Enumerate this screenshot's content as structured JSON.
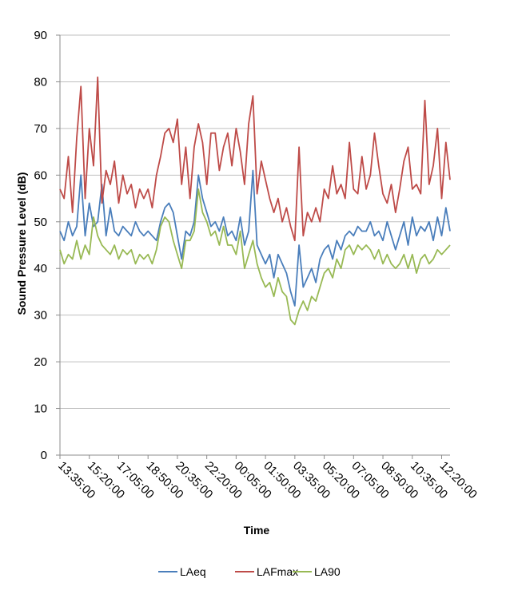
{
  "chart_data": {
    "type": "line",
    "title": "",
    "xlabel": "Time",
    "ylabel": "Sound Pressure Level (dB)",
    "ylim": [
      0,
      90
    ],
    "yticks": [
      0,
      10,
      20,
      30,
      40,
      50,
      60,
      70,
      80,
      90
    ],
    "grid": true,
    "legend": "bottom",
    "x_step_minutes": 15,
    "x_max_minutes": 1395,
    "x_tick_step_minutes": 105,
    "x_tick_labels": [
      "13:35:00",
      "15:20:00",
      "17:05:00",
      "18:50:00",
      "20:35:00",
      "22:20:00",
      "00:05:00",
      "01:50:00",
      "03:35:00",
      "05:20:00",
      "07:05:00",
      "08:50:00",
      "10:35:00",
      "12:20:00"
    ],
    "series": [
      {
        "name": "LAeq",
        "color": "#4a7ebb",
        "values": [
          48,
          46,
          50,
          47,
          49,
          60,
          47,
          54,
          49,
          50,
          58,
          47,
          53,
          48,
          47,
          49,
          48,
          47,
          50,
          48,
          47,
          48,
          47,
          46,
          50,
          53,
          54,
          52,
          47,
          42,
          48,
          47,
          50,
          60,
          55,
          52,
          49,
          50,
          48,
          51,
          47,
          48,
          46,
          51,
          45,
          48,
          61,
          45,
          43,
          41,
          43,
          38,
          43,
          41,
          39,
          35,
          32,
          45,
          36,
          38,
          40,
          37,
          42,
          44,
          45,
          42,
          46,
          44,
          47,
          48,
          47,
          49,
          48,
          48,
          50,
          47,
          48,
          46,
          50,
          47,
          44,
          47,
          50,
          45,
          51,
          47,
          49,
          48,
          50,
          46,
          51,
          47,
          53,
          48
        ]
      },
      {
        "name": "LAFmax",
        "color": "#be4b48",
        "values": [
          57,
          55,
          64,
          52,
          68,
          79,
          55,
          70,
          62,
          81,
          54,
          61,
          58,
          63,
          54,
          60,
          56,
          58,
          53,
          57,
          55,
          57,
          53,
          60,
          64,
          69,
          70,
          67,
          72,
          58,
          66,
          55,
          66,
          71,
          67,
          58,
          69,
          69,
          61,
          66,
          69,
          62,
          70,
          65,
          58,
          71,
          77,
          56,
          63,
          59,
          55,
          52,
          55,
          50,
          53,
          49,
          46,
          66,
          47,
          52,
          50,
          53,
          50,
          57,
          55,
          62,
          56,
          58,
          55,
          67,
          57,
          56,
          64,
          57,
          60,
          69,
          62,
          56,
          54,
          58,
          52,
          57,
          63,
          66,
          57,
          58,
          56,
          76,
          58,
          62,
          70,
          55,
          67,
          59
        ]
      },
      {
        "name": "LA90",
        "color": "#98b954",
        "values": [
          44,
          41,
          43,
          42,
          46,
          42,
          45,
          43,
          51,
          47,
          45,
          44,
          43,
          45,
          42,
          44,
          43,
          44,
          41,
          43,
          42,
          43,
          41,
          44,
          49,
          51,
          50,
          46,
          43,
          40,
          46,
          46,
          48,
          57,
          52,
          50,
          47,
          48,
          45,
          49,
          45,
          45,
          43,
          48,
          40,
          43,
          46,
          41,
          38,
          36,
          37,
          34,
          38,
          35,
          34,
          29,
          28,
          31,
          33,
          31,
          34,
          33,
          36,
          39,
          40,
          38,
          42,
          40,
          44,
          45,
          43,
          45,
          44,
          45,
          44,
          42,
          44,
          41,
          43,
          41,
          40,
          41,
          43,
          40,
          43,
          39,
          42,
          43,
          41,
          42,
          44,
          43,
          44,
          45
        ]
      }
    ]
  }
}
